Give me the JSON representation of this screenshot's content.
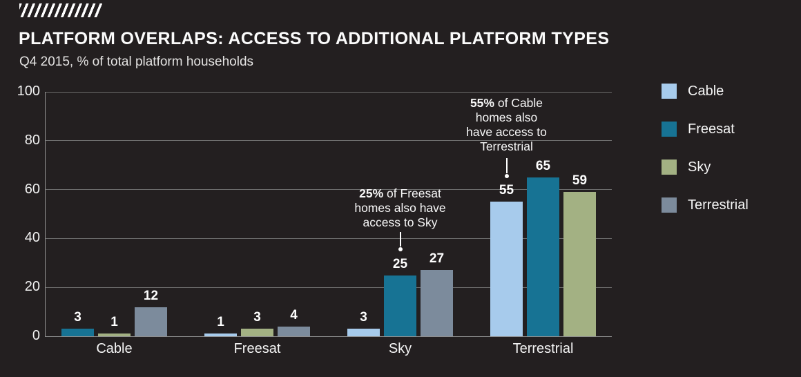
{
  "header": {
    "title": "PLATFORM OVERLAPS: ACCESS TO ADDITIONAL PLATFORM TYPES",
    "subtitle": "Q4 2015, % of total platform households"
  },
  "colors": {
    "background": "#231f20",
    "gridline": "#6f6f6f",
    "axis": "#8f8f8f",
    "text": "#ffffff"
  },
  "chart_data": {
    "type": "bar",
    "title": "PLATFORM OVERLAPS: ACCESS TO ADDITIONAL PLATFORM TYPES",
    "subtitle": "Q4 2015, % of total platform households",
    "categories": [
      "Cable",
      "Freesat",
      "Sky",
      "Terrestrial"
    ],
    "series": [
      {
        "name": "Cable",
        "color": "#a7cbec",
        "values": [
          null,
          1,
          3,
          55
        ]
      },
      {
        "name": "Freesat",
        "color": "#177394",
        "values": [
          3,
          null,
          25,
          65
        ]
      },
      {
        "name": "Sky",
        "color": "#a3b183",
        "values": [
          1,
          3,
          null,
          59
        ]
      },
      {
        "name": "Terrestrial",
        "color": "#7c8b9c",
        "values": [
          12,
          4,
          27,
          null
        ]
      }
    ],
    "ylim": [
      0,
      100
    ],
    "yticks": [
      0,
      20,
      40,
      60,
      80,
      100
    ],
    "grid": true,
    "legend_position": "right",
    "annotations": [
      {
        "target_category": "Terrestrial",
        "target_series": "Cable",
        "lines": [
          [
            {
              "t": "55%",
              "b": true
            },
            {
              "t": " of Cable"
            }
          ],
          [
            {
              "t": "homes also"
            }
          ],
          [
            {
              "t": "have access to"
            }
          ],
          [
            {
              "t": "Terrestrial"
            }
          ]
        ]
      },
      {
        "target_category": "Sky",
        "target_series": "Freesat",
        "lines": [
          [
            {
              "t": "25%",
              "b": true
            },
            {
              "t": " of Freesat"
            }
          ],
          [
            {
              "t": "homes also have"
            }
          ],
          [
            {
              "t": "access to Sky"
            }
          ]
        ]
      }
    ]
  }
}
